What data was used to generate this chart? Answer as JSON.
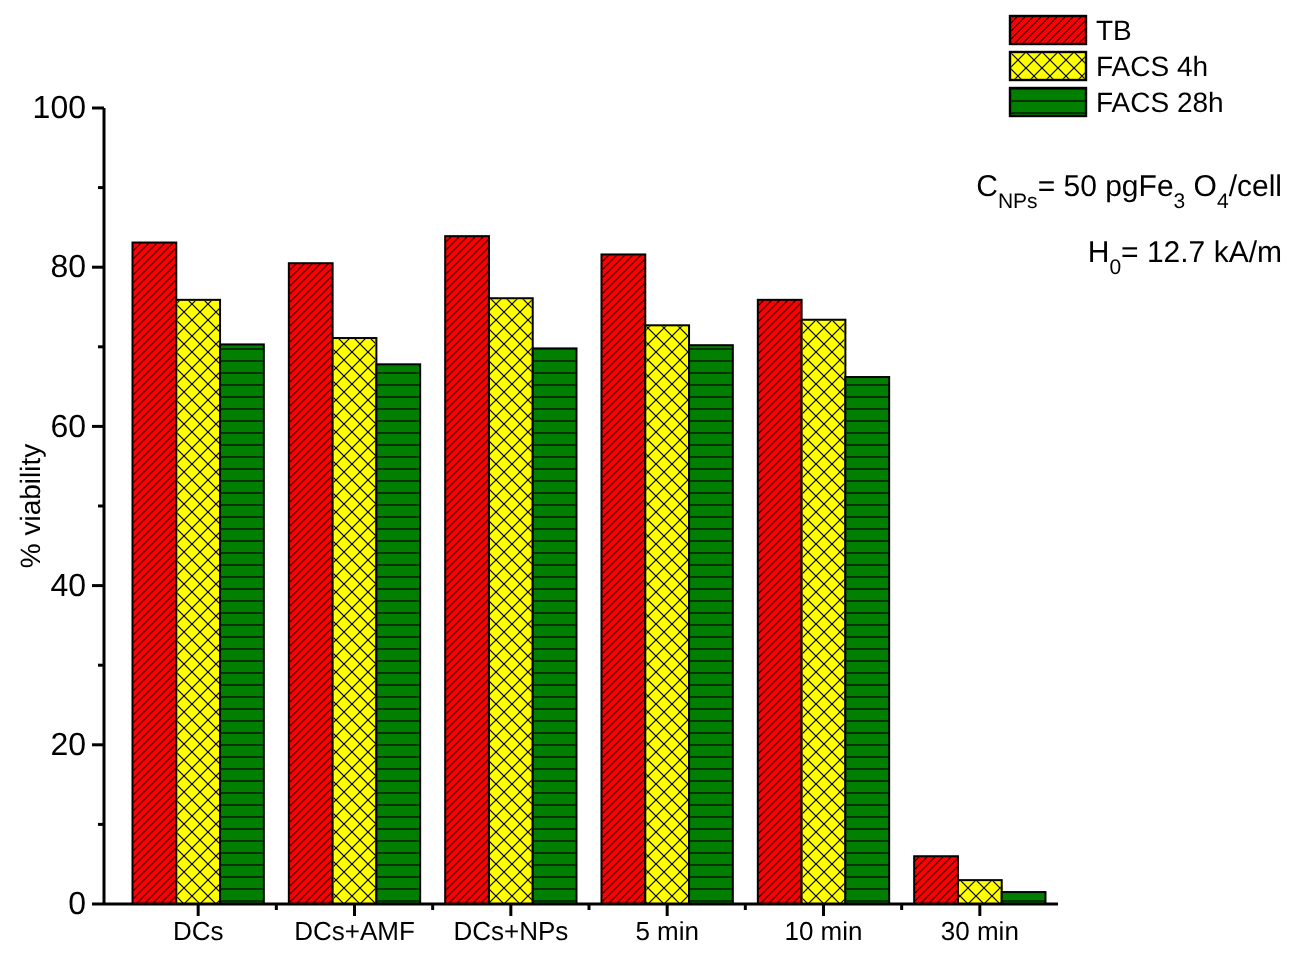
{
  "chart_data": {
    "type": "bar",
    "ylabel": "% viability",
    "categories": [
      "DCs",
      "DCs+AMF",
      "DCs+NPs",
      "5 min",
      "10 min",
      "30 min"
    ],
    "series": [
      {
        "name": "TB",
        "color": "#ff0000",
        "values": [
          83.1,
          80.5,
          83.9,
          81.6,
          75.9,
          6
        ]
      },
      {
        "name": "FACS 4h",
        "color": "#ffff00",
        "values": [
          75.9,
          71.1,
          76.1,
          72.7,
          73.4,
          3
        ]
      },
      {
        "name": "FACS 28h",
        "color": "#007f00",
        "values": [
          70.3,
          67.8,
          69.8,
          70.2,
          66.2,
          1.5
        ]
      }
    ],
    "ylim": [
      0,
      100
    ],
    "yticks": [
      0,
      {
        "value": 10,
        "label": null
      },
      20,
      {
        "value": 30,
        "label": null
      },
      40,
      {
        "value": 50,
        "label": null
      },
      60,
      {
        "value": 70,
        "label": null
      },
      80,
      {
        "value": 90,
        "label": null
      },
      100
    ],
    "legend": "top right",
    "grid": false,
    "annotations": [
      "C$_{NPs}$= 50 pgFe$_{3}$ O$_{4}$/cell",
      "H$_{0}$= 12.7 kA/m"
    ]
  }
}
